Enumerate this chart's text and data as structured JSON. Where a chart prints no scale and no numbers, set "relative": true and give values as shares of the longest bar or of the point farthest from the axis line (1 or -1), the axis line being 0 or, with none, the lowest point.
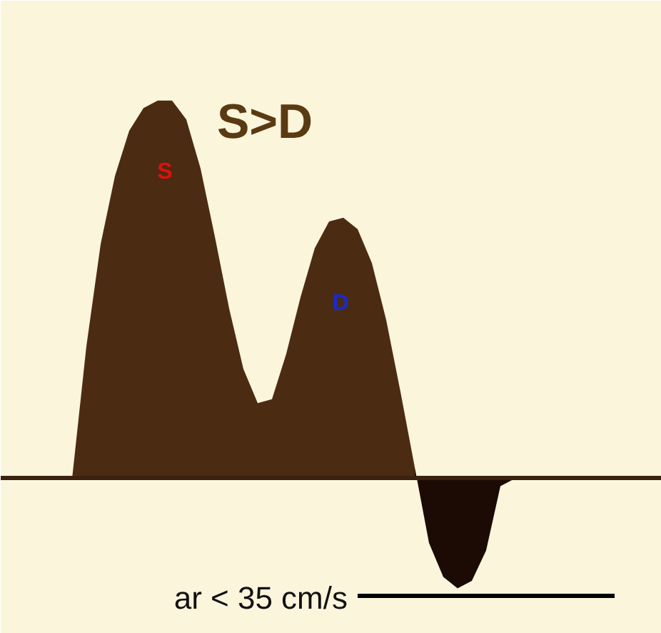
{
  "chart_data": {
    "type": "area",
    "title": "S>D",
    "relative": true,
    "categories": [
      null,
      null,
      null,
      null,
      null,
      null,
      null,
      null,
      null,
      null,
      null,
      null,
      null,
      null,
      null,
      null,
      null,
      null,
      null,
      null,
      null,
      null,
      null,
      null,
      null,
      null,
      null,
      null,
      null,
      null,
      null,
      null,
      null,
      null,
      null,
      null,
      null,
      null,
      null,
      null,
      null,
      null
    ],
    "series": [
      {
        "color": "#4b2c12",
        "values": [
          0,
          0,
          0,
          0.35,
          0.62,
          0.8,
          0.92,
          0.98,
          1.0,
          1.0,
          0.95,
          0.82,
          0.64,
          0.45,
          0.29,
          0.2,
          0.21,
          0.33,
          0.48,
          0.61,
          0.68,
          0.69,
          0.66,
          0.57,
          0.42,
          0.23,
          0.03,
          null,
          null,
          null,
          null,
          null,
          null,
          null,
          null,
          null,
          null,
          null,
          null,
          null,
          null,
          null
        ]
      },
      {
        "color": "#1c0b04",
        "values": [
          null,
          null,
          null,
          null,
          null,
          null,
          null,
          null,
          null,
          null,
          null,
          null,
          null,
          null,
          null,
          null,
          null,
          null,
          null,
          null,
          null,
          null,
          null,
          null,
          null,
          null,
          0.03,
          -0.17,
          -0.26,
          -0.29,
          -0.27,
          -0.19,
          -0.02,
          0,
          null,
          null,
          null,
          null,
          null,
          null,
          null,
          null
        ]
      },
      {
        "type": "line",
        "color": "#000000",
        "values": [
          null,
          null,
          null,
          null,
          null,
          null,
          null,
          null,
          null,
          null,
          null,
          null,
          null,
          null,
          null,
          null,
          null,
          null,
          null,
          null,
          null,
          null,
          -0.31,
          -0.31,
          -0.31,
          -0.31,
          -0.31,
          -0.31,
          -0.31,
          -0.31,
          -0.31,
          -0.31,
          -0.31,
          -0.31,
          -0.31,
          -0.31,
          -0.31,
          -0.31,
          -0.31,
          -0.31,
          -0.31,
          null
        ]
      }
    ],
    "annotations": [
      "S",
      "D",
      "ar < 35 cm/s"
    ],
    "grid": false
  }
}
